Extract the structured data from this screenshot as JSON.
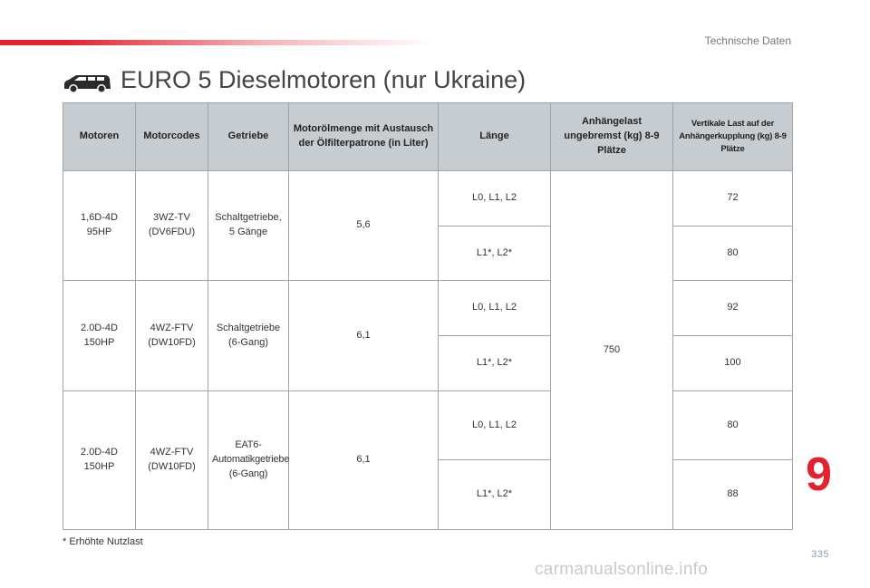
{
  "header": {
    "section_title": "Technische Daten",
    "page_heading": "EURO 5 Dieselmotoren (nur Ukraine)",
    "car_icon": "car-icon",
    "accent_color": "#e2222e"
  },
  "table": {
    "headers": [
      "Motoren",
      "Motorcodes",
      "Getriebe",
      "Motorölmenge mit Austausch der Ölfilterpatrone (in Liter)",
      "Länge",
      "Anhängelast ungebremst (kg) 8-9 Plätze",
      "Vertikale Last auf der Anhängerkupplung (kg) 8-9 Plätze"
    ],
    "trailer_load_unbraked": "750",
    "engines": [
      {
        "motor": "1,6D-4D 95HP",
        "code": "3WZ-TV (DV6FDU)",
        "gearbox": "Schaltgetriebe, 5 Gänge",
        "oil": "5,6",
        "rows": [
          {
            "length": "L0, L1, L2",
            "vertical_load": "72"
          },
          {
            "length": "L1*, L2*",
            "vertical_load": "80"
          }
        ]
      },
      {
        "motor": "2.0D-4D 150HP",
        "code": "4WZ-FTV (DW10FD)",
        "gearbox": "Schaltgetriebe (6-Gang)",
        "oil": "6,1",
        "rows": [
          {
            "length": "L0, L1, L2",
            "vertical_load": "92"
          },
          {
            "length": "L1*, L2*",
            "vertical_load": "100"
          }
        ]
      },
      {
        "motor": "2.0D-4D 150HP",
        "code": "4WZ-FTV (DW10FD)",
        "gearbox": "EAT6-Automatikgetriebe (6-Gang)",
        "oil": "6,1",
        "rows": [
          {
            "length": "L0, L1, L2",
            "vertical_load": "80"
          },
          {
            "length": "L1*, L2*",
            "vertical_load": "88"
          }
        ]
      }
    ]
  },
  "footnote": "* Erhöhte Nutzlast",
  "chapter_number": "9",
  "page_number": "335",
  "watermark": "carmanualsonline.info"
}
